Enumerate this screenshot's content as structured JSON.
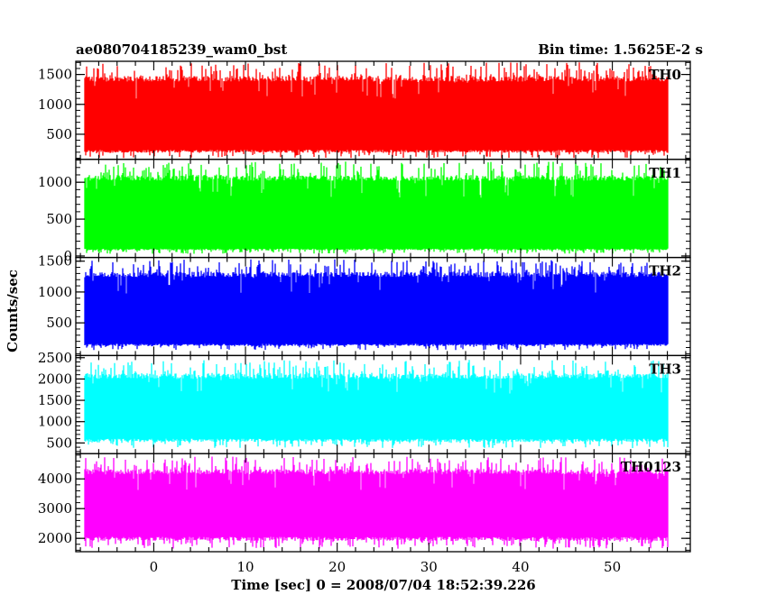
{
  "chart_data": {
    "type": "line",
    "title": "ae080704185239_wam0_bst",
    "subtitle": "Bin time: 1.5625E-2 s",
    "xlabel": "Time [sec] 0 = 2008/07/04 18:52:39.226",
    "ylabel": "Counts/sec",
    "xlim": [
      -8.5,
      58.5
    ],
    "data_range": [
      -7.5,
      56.0
    ],
    "x_ticks": [
      0,
      10,
      20,
      30,
      40,
      50
    ],
    "grid": false,
    "panels": [
      {
        "name": "TH0",
        "color": "#ff0000",
        "ylim": [
          80,
          1720
        ],
        "y_ticks": [
          500,
          1000,
          1500
        ],
        "envelope": {
          "min_base": 240,
          "min_low": 100,
          "max_base": 1380,
          "max_high": 1700
        }
      },
      {
        "name": "TH1",
        "color": "#00ff00",
        "ylim": [
          -20,
          1310
        ],
        "y_ticks": [
          0,
          500,
          1000
        ],
        "envelope": {
          "min_base": 100,
          "min_low": 30,
          "max_base": 1020,
          "max_high": 1280
        }
      },
      {
        "name": "TH2",
        "color": "#0000ff",
        "ylim": [
          -30,
          1560
        ],
        "y_ticks": [
          500,
          1000,
          1500
        ],
        "envelope": {
          "min_base": 160,
          "min_low": 60,
          "max_base": 1240,
          "max_high": 1530
        }
      },
      {
        "name": "TH3",
        "color": "#00ffff",
        "ylim": [
          250,
          2550
        ],
        "y_ticks": [
          500,
          1000,
          1500,
          2000,
          2500
        ],
        "envelope": {
          "min_base": 600,
          "min_low": 380,
          "max_base": 2000,
          "max_high": 2450
        }
      },
      {
        "name": "TH0123",
        "color": "#ff00ff",
        "ylim": [
          1550,
          4850
        ],
        "y_ticks": [
          2000,
          3000,
          4000
        ],
        "envelope": {
          "min_base": 2050,
          "min_low": 1650,
          "max_base": 4150,
          "max_high": 4750
        }
      }
    ]
  }
}
